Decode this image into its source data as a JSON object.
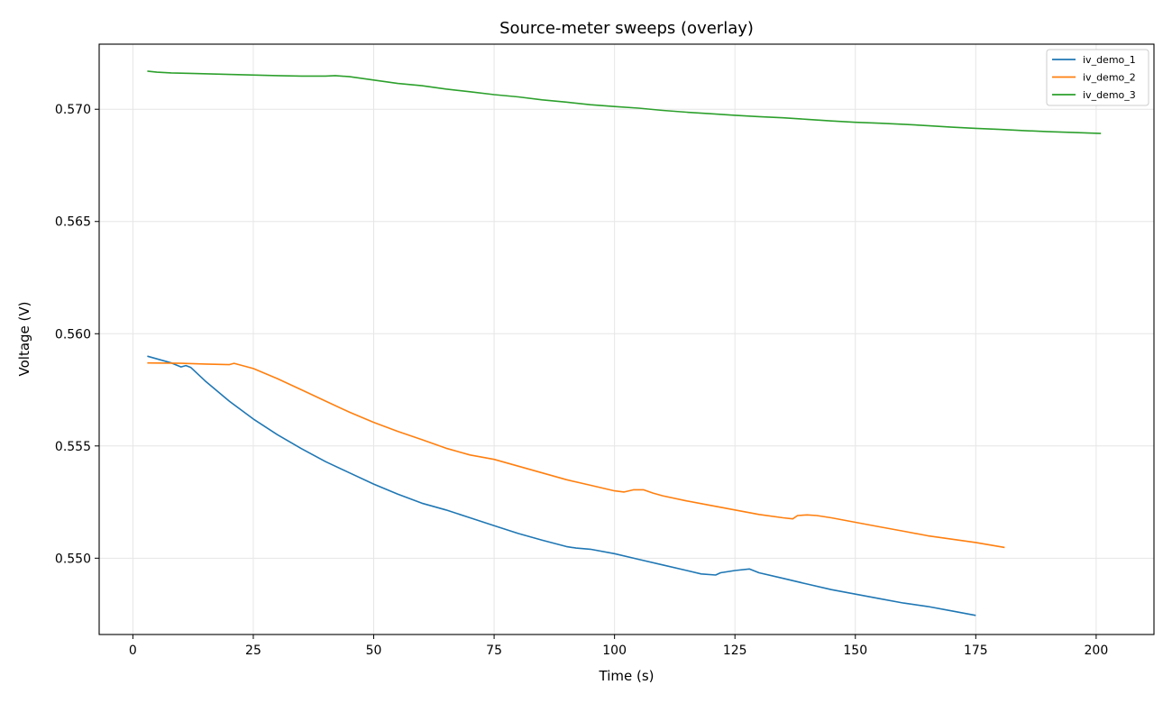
{
  "chart_data": {
    "type": "line",
    "title": "Source-meter sweeps (overlay)",
    "xlabel": "Time (s)",
    "ylabel": "Voltage (V)",
    "xlim": [
      -7,
      212
    ],
    "ylim": [
      0.5466,
      0.5729
    ],
    "x_ticks": [
      0,
      25,
      50,
      75,
      100,
      125,
      150,
      175,
      200
    ],
    "y_ticks": [
      0.55,
      0.555,
      0.56,
      0.565,
      0.57
    ],
    "x_tick_labels": [
      "0",
      "25",
      "50",
      "75",
      "100",
      "125",
      "150",
      "175",
      "200"
    ],
    "y_tick_labels": [
      "0.550",
      "0.555",
      "0.560",
      "0.565",
      "0.570"
    ],
    "grid": true,
    "legend_position": "top-right",
    "series": [
      {
        "name": "iv_demo_1",
        "color": "#1f77b4",
        "points": [
          [
            3,
            0.559
          ],
          [
            5,
            0.55888
          ],
          [
            8,
            0.5587
          ],
          [
            10,
            0.55852
          ],
          [
            11,
            0.55858
          ],
          [
            12,
            0.5585
          ],
          [
            15,
            0.5579
          ],
          [
            20,
            0.557
          ],
          [
            25,
            0.5562
          ],
          [
            30,
            0.5555
          ],
          [
            35,
            0.55488
          ],
          [
            40,
            0.5543
          ],
          [
            45,
            0.5538
          ],
          [
            50,
            0.5533
          ],
          [
            55,
            0.55285
          ],
          [
            60,
            0.55245
          ],
          [
            65,
            0.55215
          ],
          [
            70,
            0.5518
          ],
          [
            75,
            0.55145
          ],
          [
            80,
            0.5511
          ],
          [
            85,
            0.5508
          ],
          [
            90,
            0.55052
          ],
          [
            92,
            0.55045
          ],
          [
            95,
            0.5504
          ],
          [
            100,
            0.5502
          ],
          [
            105,
            0.54995
          ],
          [
            110,
            0.5497
          ],
          [
            115,
            0.54945
          ],
          [
            118,
            0.5493
          ],
          [
            121,
            0.54925
          ],
          [
            122,
            0.54935
          ],
          [
            125,
            0.54945
          ],
          [
            128,
            0.54952
          ],
          [
            130,
            0.54935
          ],
          [
            135,
            0.5491
          ],
          [
            140,
            0.54885
          ],
          [
            145,
            0.5486
          ],
          [
            150,
            0.5484
          ],
          [
            155,
            0.5482
          ],
          [
            160,
            0.548
          ],
          [
            165,
            0.54785
          ],
          [
            170,
            0.54765
          ],
          [
            175,
            0.54745
          ]
        ]
      },
      {
        "name": "iv_demo_2",
        "color": "#ff7f0e",
        "points": [
          [
            3,
            0.5587
          ],
          [
            10,
            0.55868
          ],
          [
            15,
            0.55865
          ],
          [
            20,
            0.55862
          ],
          [
            21,
            0.55868
          ],
          [
            25,
            0.55845
          ],
          [
            30,
            0.558
          ],
          [
            35,
            0.5575
          ],
          [
            40,
            0.557
          ],
          [
            45,
            0.5565
          ],
          [
            50,
            0.55605
          ],
          [
            55,
            0.55565
          ],
          [
            60,
            0.55528
          ],
          [
            65,
            0.5549
          ],
          [
            70,
            0.5546
          ],
          [
            75,
            0.5544
          ],
          [
            80,
            0.5541
          ],
          [
            85,
            0.5538
          ],
          [
            90,
            0.5535
          ],
          [
            95,
            0.55325
          ],
          [
            100,
            0.553
          ],
          [
            102,
            0.55295
          ],
          [
            104,
            0.55305
          ],
          [
            106,
            0.55305
          ],
          [
            108,
            0.5529
          ],
          [
            110,
            0.55278
          ],
          [
            115,
            0.55255
          ],
          [
            120,
            0.55235
          ],
          [
            125,
            0.55215
          ],
          [
            130,
            0.55195
          ],
          [
            135,
            0.5518
          ],
          [
            137,
            0.55175
          ],
          [
            138,
            0.5519
          ],
          [
            140,
            0.55193
          ],
          [
            142,
            0.5519
          ],
          [
            145,
            0.5518
          ],
          [
            150,
            0.5516
          ],
          [
            155,
            0.5514
          ],
          [
            160,
            0.5512
          ],
          [
            165,
            0.551
          ],
          [
            170,
            0.55085
          ],
          [
            175,
            0.5507
          ],
          [
            181,
            0.55048
          ]
        ]
      },
      {
        "name": "iv_demo_3",
        "color": "#2ca02c",
        "points": [
          [
            3,
            0.5717
          ],
          [
            5,
            0.57165
          ],
          [
            8,
            0.57162
          ],
          [
            12,
            0.5716
          ],
          [
            20,
            0.57155
          ],
          [
            30,
            0.5715
          ],
          [
            35,
            0.57148
          ],
          [
            40,
            0.57148
          ],
          [
            42,
            0.5715
          ],
          [
            45,
            0.57145
          ],
          [
            50,
            0.5713
          ],
          [
            55,
            0.57115
          ],
          [
            60,
            0.57105
          ],
          [
            65,
            0.5709
          ],
          [
            70,
            0.57078
          ],
          [
            75,
            0.57065
          ],
          [
            80,
            0.57055
          ],
          [
            85,
            0.57042
          ],
          [
            90,
            0.57032
          ],
          [
            95,
            0.5702
          ],
          [
            100,
            0.57012
          ],
          [
            105,
            0.57005
          ],
          [
            110,
            0.56995
          ],
          [
            115,
            0.56987
          ],
          [
            120,
            0.5698
          ],
          [
            125,
            0.56973
          ],
          [
            130,
            0.56967
          ],
          [
            135,
            0.56962
          ],
          [
            140,
            0.56955
          ],
          [
            145,
            0.56948
          ],
          [
            150,
            0.56942
          ],
          [
            155,
            0.56938
          ],
          [
            160,
            0.56933
          ],
          [
            165,
            0.56927
          ],
          [
            170,
            0.5692
          ],
          [
            175,
            0.56915
          ],
          [
            180,
            0.5691
          ],
          [
            185,
            0.56905
          ],
          [
            190,
            0.569
          ],
          [
            195,
            0.56897
          ],
          [
            201,
            0.56892
          ]
        ]
      }
    ]
  }
}
